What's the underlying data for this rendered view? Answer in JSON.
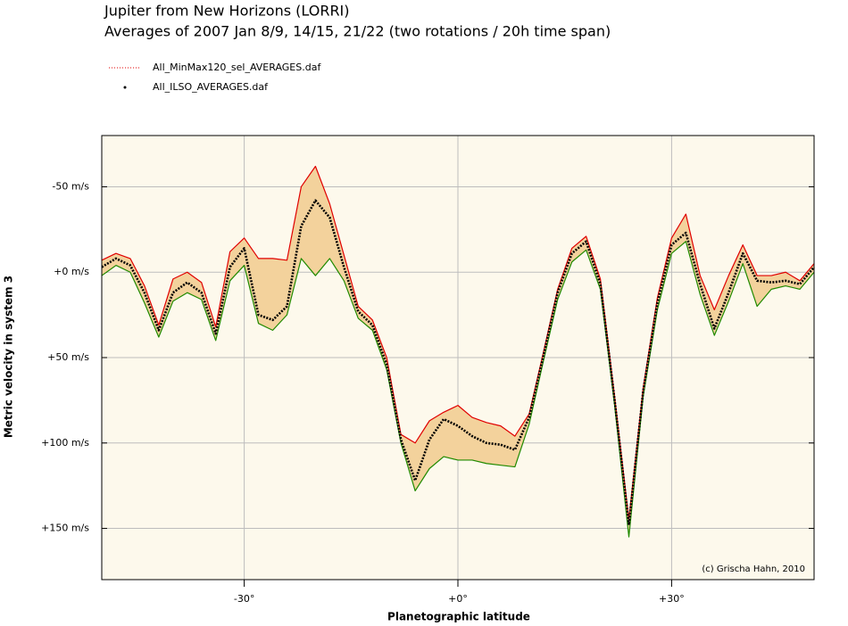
{
  "chart_data": {
    "type": "line",
    "title": "Jupiter from New Horizons (LORRI)",
    "subtitle": "Averages of 2007 Jan 8/9, 14/15, 21/22 (two rotations / 20h time span)",
    "x_label": "Planetographic latitude",
    "y_label": "Metric velocity in system 3",
    "annotation": "(c) Grischa Hahn, 2010",
    "x": [
      -50,
      -48,
      -46,
      -44,
      -42,
      -40,
      -38,
      -36,
      -34,
      -32,
      -30,
      -28,
      -26,
      -24,
      -22,
      -20,
      -18,
      -16,
      -14,
      -12,
      -10,
      -8,
      -6,
      -4,
      -2,
      0,
      2,
      4,
      6,
      8,
      10,
      12,
      14,
      16,
      18,
      20,
      22,
      24,
      26,
      28,
      30,
      32,
      34,
      36,
      38,
      40,
      42,
      44,
      46,
      48,
      50
    ],
    "series": [
      {
        "name": "All_MinMax120_sel_AVERAGES.daf",
        "color": "#e00000",
        "values": [
          -7,
          -11,
          -8,
          8,
          31,
          4,
          0,
          6,
          32,
          -12,
          -20,
          -8,
          -8,
          -7,
          -50,
          -62,
          -40,
          -10,
          20,
          28,
          50,
          95,
          100,
          87,
          82,
          78,
          85,
          88,
          90,
          96,
          83,
          47,
          10,
          -14,
          -21,
          4,
          73,
          145,
          68,
          15,
          -20,
          -34,
          2,
          22,
          2,
          -16,
          2,
          2,
          0,
          5,
          -5
        ]
      },
      {
        "name": "All_MinMax120_sel_AVERAGES.daf",
        "color": "#208a00",
        "values": [
          2,
          -4,
          0,
          18,
          38,
          17,
          12,
          16,
          40,
          5,
          -4,
          30,
          34,
          25,
          -8,
          2,
          -8,
          5,
          27,
          34,
          57,
          100,
          128,
          115,
          108,
          110,
          110,
          112,
          113,
          114,
          89,
          52,
          16,
          -6,
          -13,
          10,
          78,
          155,
          73,
          22,
          -11,
          -18,
          13,
          37,
          17,
          -5,
          20,
          10,
          8,
          10,
          0
        ]
      },
      {
        "name": "All_ILSO_AVERAGES.daf",
        "color": "#000000",
        "values": [
          -3,
          -8,
          -4,
          12,
          34,
          12,
          6,
          12,
          36,
          -3,
          -14,
          25,
          28,
          20,
          -27,
          -42,
          -32,
          -3,
          23,
          31,
          54,
          98,
          122,
          98,
          86,
          90,
          96,
          100,
          101,
          104,
          85,
          49,
          12,
          -11,
          -18,
          7,
          75,
          148,
          70,
          18,
          -16,
          -23,
          7,
          33,
          12,
          -11,
          5,
          6,
          5,
          7,
          -3
        ]
      }
    ],
    "fill_color": "#f3d29c",
    "plot_background": "#fdf9ec",
    "xlim": [
      -50,
      50
    ],
    "xticks": [
      {
        "value": -30,
        "label": "-30°"
      },
      {
        "value": 0,
        "label": "+0°"
      },
      {
        "value": 30,
        "label": "+30°"
      }
    ],
    "ylim": [
      -80,
      180
    ],
    "y_inverted": true,
    "yticks": [
      {
        "value": -50,
        "label": "-50 m/s"
      },
      {
        "value": 0,
        "label": "+0 m/s"
      },
      {
        "value": 50,
        "label": "+50 m/s"
      },
      {
        "value": 100,
        "label": "+100 m/s"
      },
      {
        "value": 150,
        "label": "+150 m/s"
      }
    ],
    "grid": true,
    "legend": "top-left"
  }
}
